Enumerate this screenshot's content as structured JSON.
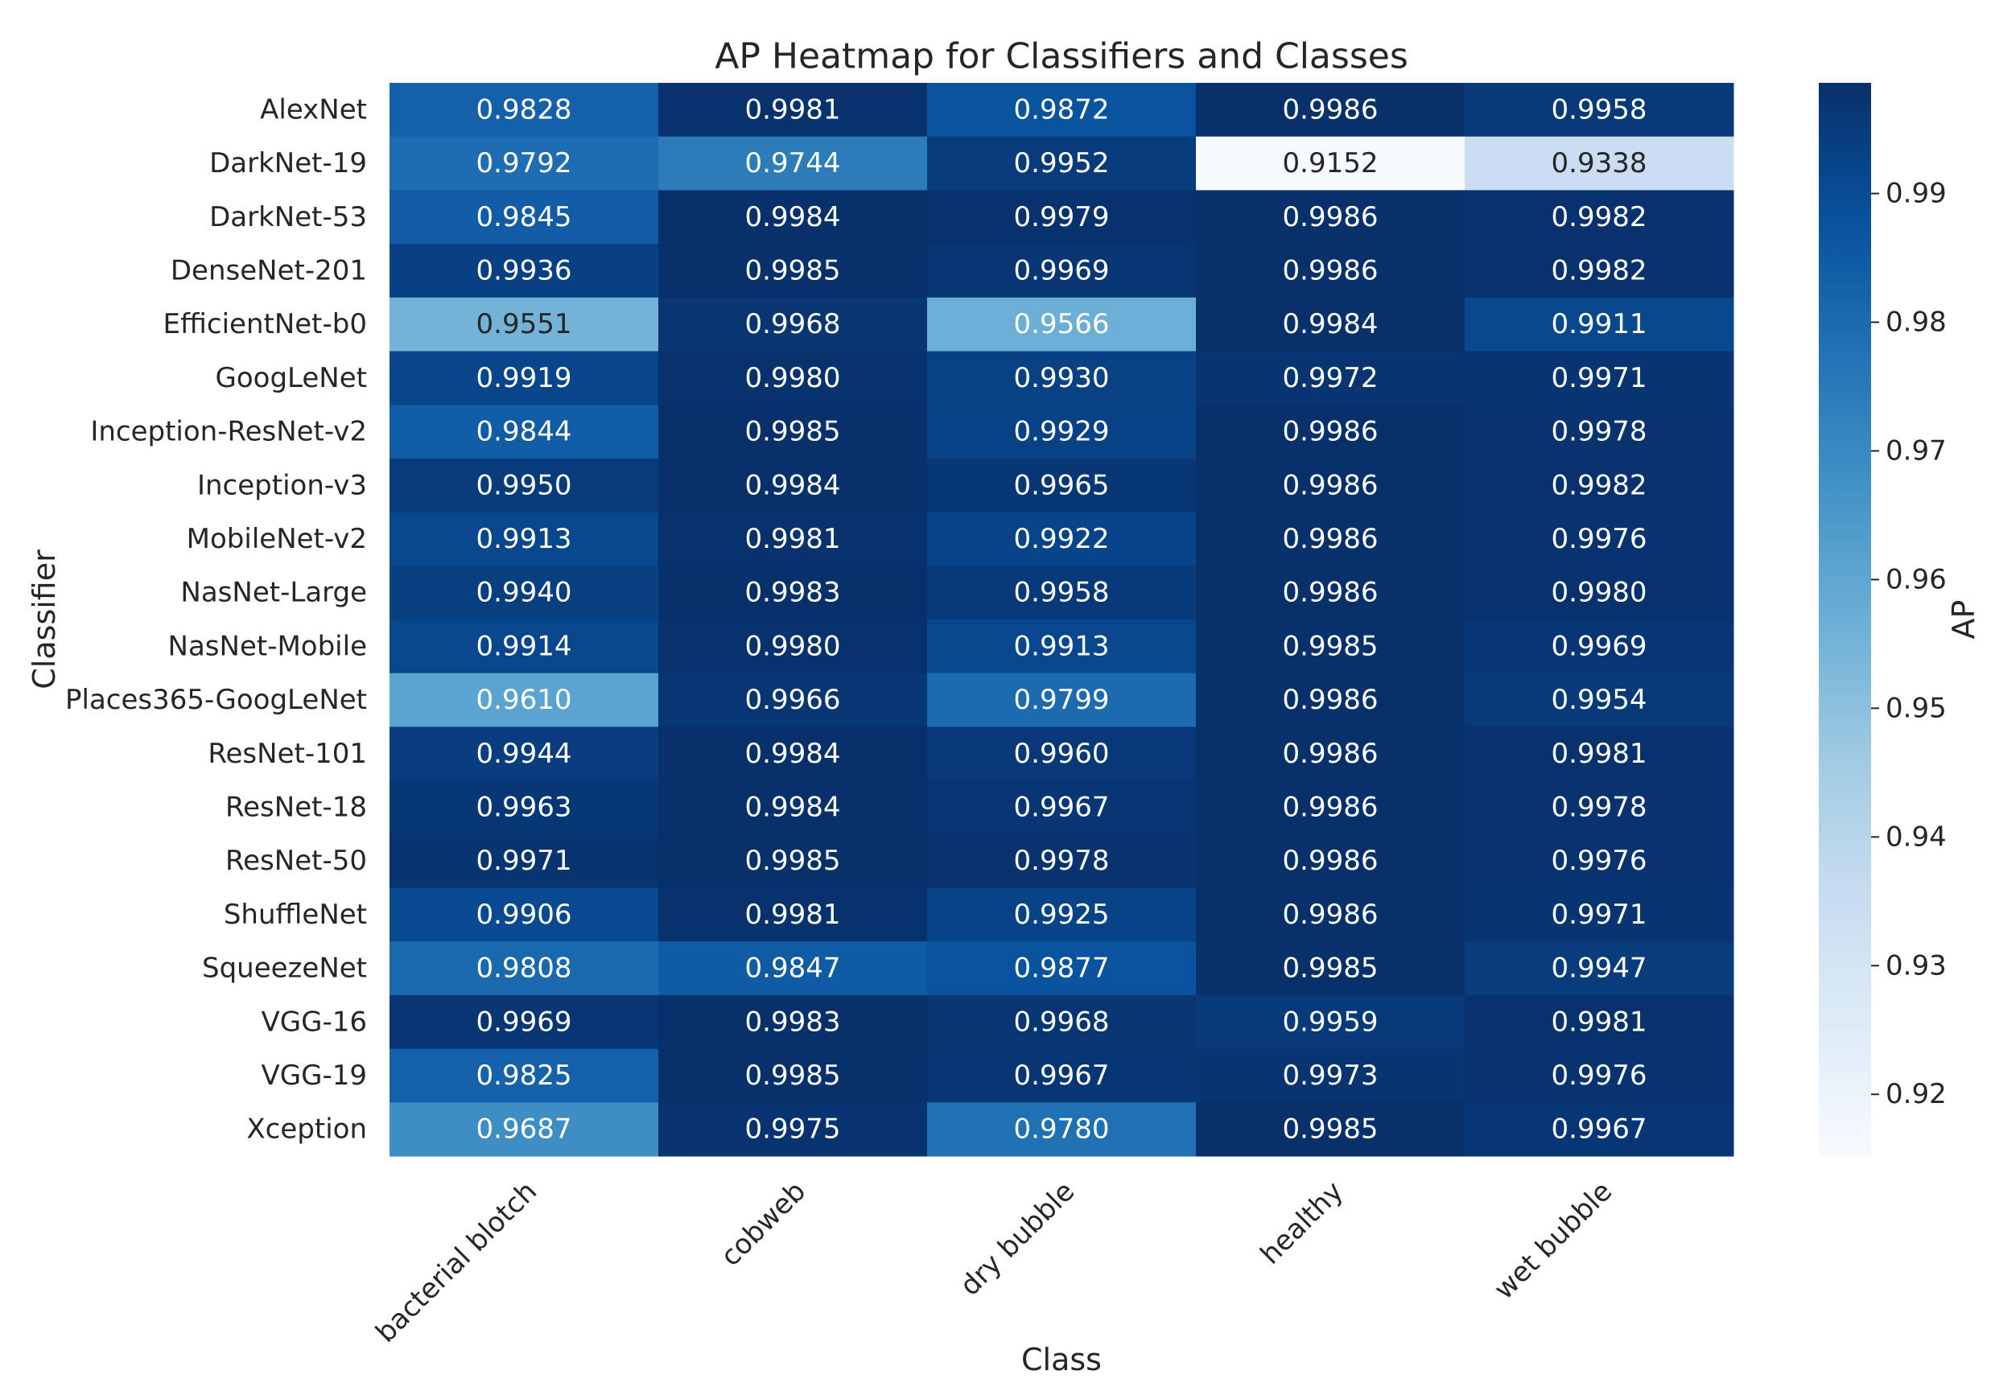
{
  "chart_data": {
    "type": "heatmap",
    "title": "AP Heatmap for Classifiers and Classes",
    "xlabel": "Class",
    "ylabel": "Classifier",
    "cmap": "Blues",
    "x_categories": [
      "bacterial blotch",
      "cobweb",
      "dry bubble",
      "healthy",
      "wet bubble"
    ],
    "y_categories": [
      "AlexNet",
      "DarkNet-19",
      "DarkNet-53",
      "DenseNet-201",
      "EfficientNet-b0",
      "GoogLeNet",
      "Inception-ResNet-v2",
      "Inception-v3",
      "MobileNet-v2",
      "NasNet-Large",
      "NasNet-Mobile",
      "Places365-GoogLeNet",
      "ResNet-101",
      "ResNet-18",
      "ResNet-50",
      "ShuffleNet",
      "SqueezeNet",
      "VGG-16",
      "VGG-19",
      "Xception"
    ],
    "values": [
      [
        0.9828,
        0.9981,
        0.9872,
        0.9986,
        0.9958
      ],
      [
        0.9792,
        0.9744,
        0.9952,
        0.9152,
        0.9338
      ],
      [
        0.9845,
        0.9984,
        0.9979,
        0.9986,
        0.9982
      ],
      [
        0.9936,
        0.9985,
        0.9969,
        0.9986,
        0.9982
      ],
      [
        0.9551,
        0.9968,
        0.9566,
        0.9984,
        0.9911
      ],
      [
        0.9919,
        0.998,
        0.993,
        0.9972,
        0.9971
      ],
      [
        0.9844,
        0.9985,
        0.9929,
        0.9986,
        0.9978
      ],
      [
        0.995,
        0.9984,
        0.9965,
        0.9986,
        0.9982
      ],
      [
        0.9913,
        0.9981,
        0.9922,
        0.9986,
        0.9976
      ],
      [
        0.994,
        0.9983,
        0.9958,
        0.9986,
        0.998
      ],
      [
        0.9914,
        0.998,
        0.9913,
        0.9985,
        0.9969
      ],
      [
        0.961,
        0.9966,
        0.9799,
        0.9986,
        0.9954
      ],
      [
        0.9944,
        0.9984,
        0.996,
        0.9986,
        0.9981
      ],
      [
        0.9963,
        0.9984,
        0.9967,
        0.9986,
        0.9978
      ],
      [
        0.9971,
        0.9985,
        0.9978,
        0.9986,
        0.9976
      ],
      [
        0.9906,
        0.9981,
        0.9925,
        0.9986,
        0.9971
      ],
      [
        0.9808,
        0.9847,
        0.9877,
        0.9985,
        0.9947
      ],
      [
        0.9969,
        0.9983,
        0.9968,
        0.9959,
        0.9981
      ],
      [
        0.9825,
        0.9985,
        0.9967,
        0.9973,
        0.9976
      ],
      [
        0.9687,
        0.9975,
        0.978,
        0.9985,
        0.9967
      ]
    ],
    "value_labels": [
      [
        "0.9828",
        "0.9981",
        "0.9872",
        "0.9986",
        "0.9958"
      ],
      [
        "0.9792",
        "0.9744",
        "0.9952",
        "0.9152",
        "0.9338"
      ],
      [
        "0.9845",
        "0.9984",
        "0.9979",
        "0.9986",
        "0.9982"
      ],
      [
        "0.9936",
        "0.9985",
        "0.9969",
        "0.9986",
        "0.9982"
      ],
      [
        "0.9551",
        "0.9968",
        "0.9566",
        "0.9984",
        "0.9911"
      ],
      [
        "0.9919",
        "0.9980",
        "0.9930",
        "0.9972",
        "0.9971"
      ],
      [
        "0.9844",
        "0.9985",
        "0.9929",
        "0.9986",
        "0.9978"
      ],
      [
        "0.9950",
        "0.9984",
        "0.9965",
        "0.9986",
        "0.9982"
      ],
      [
        "0.9913",
        "0.9981",
        "0.9922",
        "0.9986",
        "0.9976"
      ],
      [
        "0.9940",
        "0.9983",
        "0.9958",
        "0.9986",
        "0.9980"
      ],
      [
        "0.9914",
        "0.9980",
        "0.9913",
        "0.9985",
        "0.9969"
      ],
      [
        "0.9610",
        "0.9966",
        "0.9799",
        "0.9986",
        "0.9954"
      ],
      [
        "0.9944",
        "0.9984",
        "0.9960",
        "0.9986",
        "0.9981"
      ],
      [
        "0.9963",
        "0.9984",
        "0.9967",
        "0.9986",
        "0.9978"
      ],
      [
        "0.9971",
        "0.9985",
        "0.9978",
        "0.9986",
        "0.9976"
      ],
      [
        "0.9906",
        "0.9981",
        "0.9925",
        "0.9986",
        "0.9971"
      ],
      [
        "0.9808",
        "0.9847",
        "0.9877",
        "0.9985",
        "0.9947"
      ],
      [
        "0.9969",
        "0.9983",
        "0.9968",
        "0.9959",
        "0.9981"
      ],
      [
        "0.9825",
        "0.9985",
        "0.9967",
        "0.9973",
        "0.9976"
      ],
      [
        "0.9687",
        "0.9975",
        "0.9780",
        "0.9985",
        "0.9967"
      ]
    ],
    "colorbar": {
      "label": "AP",
      "lim": [
        0.9152,
        0.9986
      ],
      "ticks": [
        0.92,
        0.93,
        0.94,
        0.95,
        0.96,
        0.97,
        0.98,
        0.99
      ]
    }
  }
}
